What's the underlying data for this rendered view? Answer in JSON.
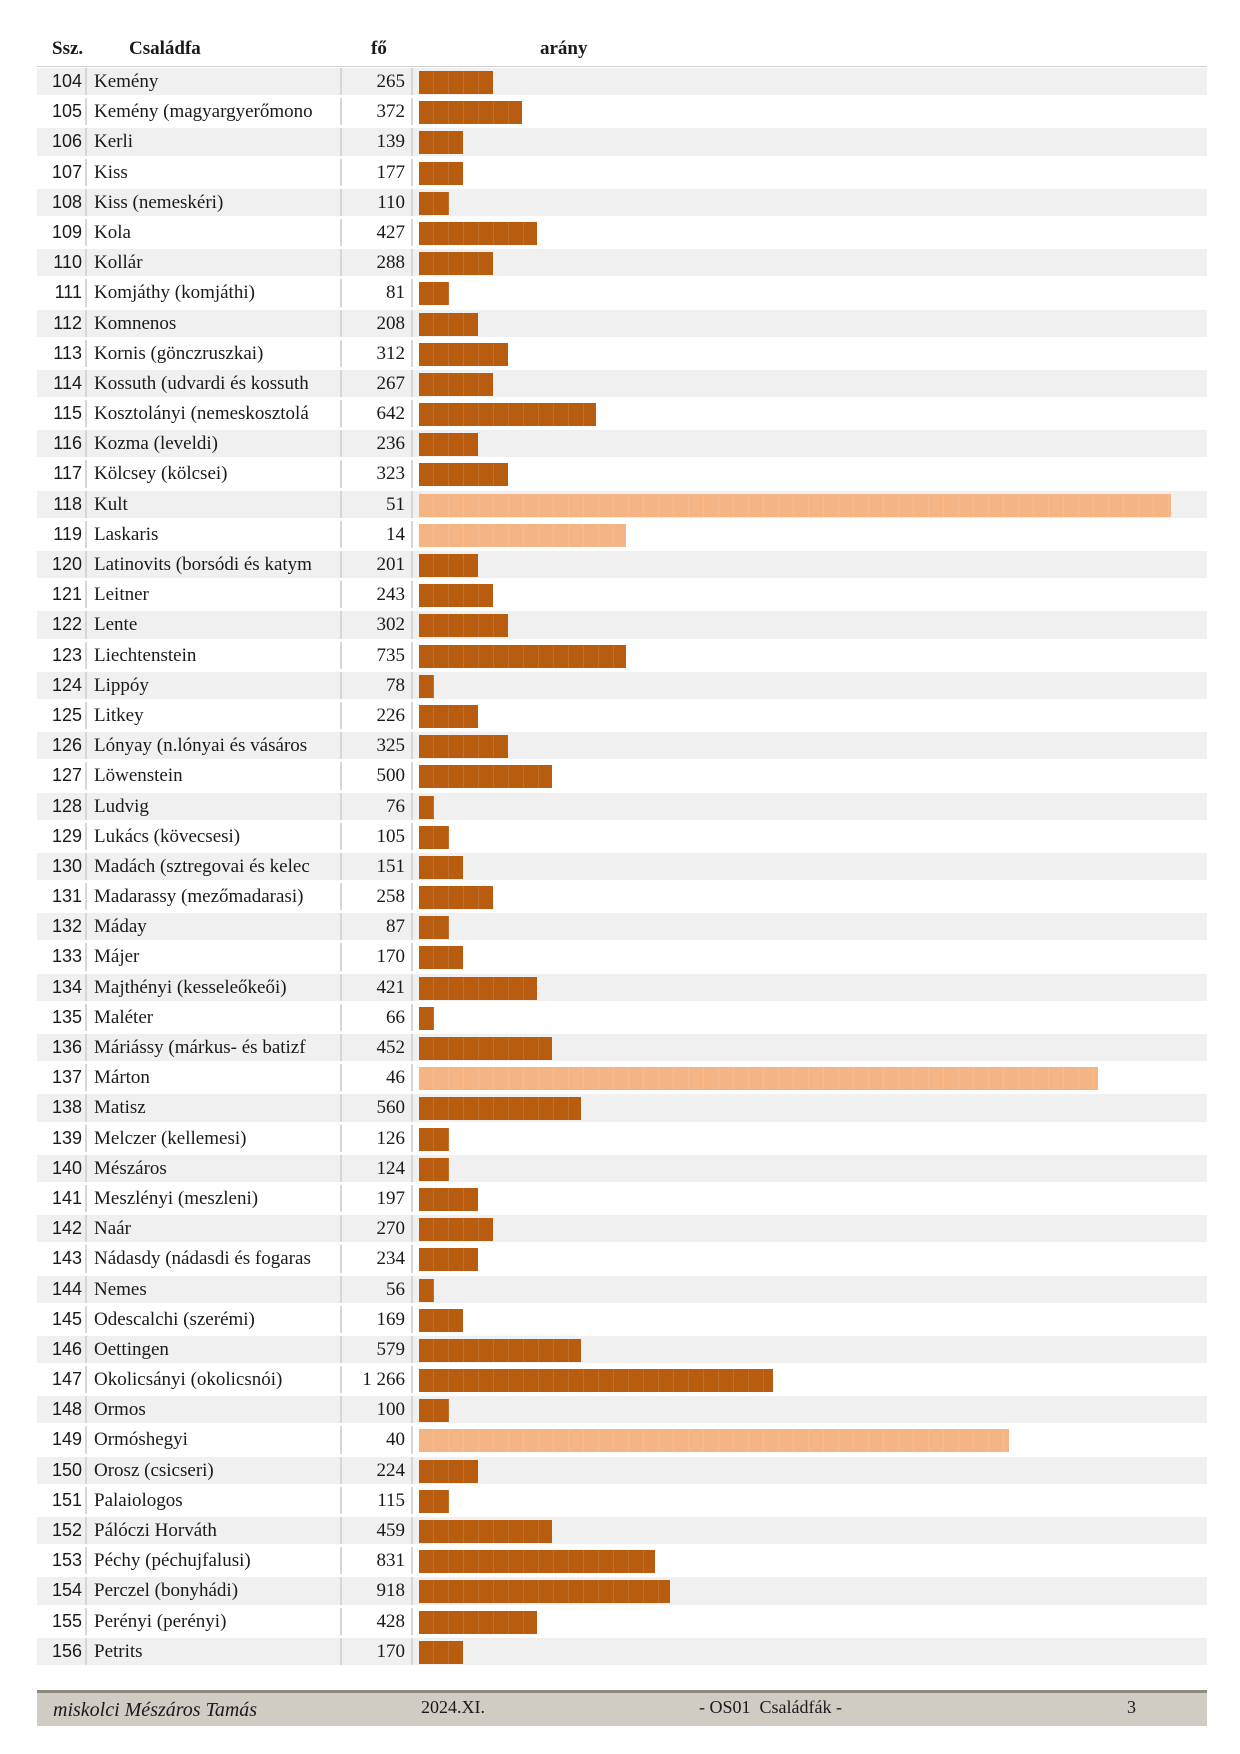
{
  "header": {
    "ssz": "Ssz.",
    "csaladfa": "Családfa",
    "fo": "fő",
    "arany": "arány"
  },
  "colors": {
    "bar_dark": "#b85c10",
    "bar_light": "#f5b483",
    "row_alt": "#f0f0f0"
  },
  "rows": [
    {
      "ssz": "104",
      "name": "Kemény",
      "fo": "265",
      "bar_units": 5,
      "light": false
    },
    {
      "ssz": "105",
      "name": "Kemény (magyargyerőmono",
      "fo": "372",
      "bar_units": 7,
      "light": false
    },
    {
      "ssz": "106",
      "name": "Kerli",
      "fo": "139",
      "bar_units": 3,
      "light": false
    },
    {
      "ssz": "107",
      "name": "Kiss",
      "fo": "177",
      "bar_units": 3,
      "light": false
    },
    {
      "ssz": "108",
      "name": "Kiss (nemeskéri)",
      "fo": "110",
      "bar_units": 2,
      "light": false
    },
    {
      "ssz": "109",
      "name": "Kola",
      "fo": "427",
      "bar_units": 8,
      "light": false
    },
    {
      "ssz": "110",
      "name": "Kollár",
      "fo": "288",
      "bar_units": 5,
      "light": false
    },
    {
      "ssz": "111",
      "name": "Komjáthy (komjáthi)",
      "fo": "81",
      "bar_units": 2,
      "light": false
    },
    {
      "ssz": "112",
      "name": "Komnenos",
      "fo": "208",
      "bar_units": 4,
      "light": false
    },
    {
      "ssz": "113",
      "name": "Kornis (gönczruszkai)",
      "fo": "312",
      "bar_units": 6,
      "light": false
    },
    {
      "ssz": "114",
      "name": "Kossuth (udvardi és kossuth",
      "fo": "267",
      "bar_units": 5,
      "light": false
    },
    {
      "ssz": "115",
      "name": "Kosztolányi (nemeskosztolá",
      "fo": "642",
      "bar_units": 12,
      "light": false
    },
    {
      "ssz": "116",
      "name": "Kozma (leveldi)",
      "fo": "236",
      "bar_units": 4,
      "light": false
    },
    {
      "ssz": "117",
      "name": "Kölcsey (kölcsei)",
      "fo": "323",
      "bar_units": 6,
      "light": false
    },
    {
      "ssz": "118",
      "name": "Kult",
      "fo": "51",
      "bar_units": 51,
      "light": true
    },
    {
      "ssz": "119",
      "name": "Laskaris",
      "fo": "14",
      "bar_units": 14,
      "light": true
    },
    {
      "ssz": "120",
      "name": "Latinovits (borsódi és katym",
      "fo": "201",
      "bar_units": 4,
      "light": false
    },
    {
      "ssz": "121",
      "name": "Leitner",
      "fo": "243",
      "bar_units": 5,
      "light": false
    },
    {
      "ssz": "122",
      "name": "Lente",
      "fo": "302",
      "bar_units": 6,
      "light": false
    },
    {
      "ssz": "123",
      "name": "Liechtenstein",
      "fo": "735",
      "bar_units": 14,
      "light": false
    },
    {
      "ssz": "124",
      "name": "Lippóy",
      "fo": "78",
      "bar_units": 1,
      "light": false
    },
    {
      "ssz": "125",
      "name": "Litkey",
      "fo": "226",
      "bar_units": 4,
      "light": false
    },
    {
      "ssz": "126",
      "name": "Lónyay (n.lónyai és vásáros",
      "fo": "325",
      "bar_units": 6,
      "light": false
    },
    {
      "ssz": "127",
      "name": "Löwenstein",
      "fo": "500",
      "bar_units": 9,
      "light": false
    },
    {
      "ssz": "128",
      "name": "Ludvig",
      "fo": "76",
      "bar_units": 1,
      "light": false
    },
    {
      "ssz": "129",
      "name": "Lukács (kövecsesi)",
      "fo": "105",
      "bar_units": 2,
      "light": false
    },
    {
      "ssz": "130",
      "name": "Madách (sztregovai és kelec",
      "fo": "151",
      "bar_units": 3,
      "light": false
    },
    {
      "ssz": "131",
      "name": "Madarassy (mezőmadarasi)",
      "fo": "258",
      "bar_units": 5,
      "light": false
    },
    {
      "ssz": "132",
      "name": "Máday",
      "fo": "87",
      "bar_units": 2,
      "light": false
    },
    {
      "ssz": "133",
      "name": "Májer",
      "fo": "170",
      "bar_units": 3,
      "light": false
    },
    {
      "ssz": "134",
      "name": "Majthényi (kesseleőkeői)",
      "fo": "421",
      "bar_units": 8,
      "light": false
    },
    {
      "ssz": "135",
      "name": "Maléter",
      "fo": "66",
      "bar_units": 1,
      "light": false
    },
    {
      "ssz": "136",
      "name": "Máriássy (márkus- és batizf",
      "fo": "452",
      "bar_units": 9,
      "light": false
    },
    {
      "ssz": "137",
      "name": "Márton",
      "fo": "46",
      "bar_units": 46,
      "light": true
    },
    {
      "ssz": "138",
      "name": "Matisz",
      "fo": "560",
      "bar_units": 11,
      "light": false
    },
    {
      "ssz": "139",
      "name": "Melczer (kellemesi)",
      "fo": "126",
      "bar_units": 2,
      "light": false
    },
    {
      "ssz": "140",
      "name": "Mészáros",
      "fo": "124",
      "bar_units": 2,
      "light": false
    },
    {
      "ssz": "141",
      "name": "Meszlényi (meszleni)",
      "fo": "197",
      "bar_units": 4,
      "light": false
    },
    {
      "ssz": "142",
      "name": "Naár",
      "fo": "270",
      "bar_units": 5,
      "light": false
    },
    {
      "ssz": "143",
      "name": "Nádasdy (nádasdi és fogaras",
      "fo": "234",
      "bar_units": 4,
      "light": false
    },
    {
      "ssz": "144",
      "name": "Nemes",
      "fo": "56",
      "bar_units": 1,
      "light": false
    },
    {
      "ssz": "145",
      "name": "Odescalchi (szerémi)",
      "fo": "169",
      "bar_units": 3,
      "light": false
    },
    {
      "ssz": "146",
      "name": "Oettingen",
      "fo": "579",
      "bar_units": 11,
      "light": false
    },
    {
      "ssz": "147",
      "name": "Okolicsányi (okolicsnói)",
      "fo": "1 266",
      "bar_units": 24,
      "light": false
    },
    {
      "ssz": "148",
      "name": "Ormos",
      "fo": "100",
      "bar_units": 2,
      "light": false
    },
    {
      "ssz": "149",
      "name": "Ormóshegyi",
      "fo": "40",
      "bar_units": 40,
      "light": true
    },
    {
      "ssz": "150",
      "name": "Orosz (csicseri)",
      "fo": "224",
      "bar_units": 4,
      "light": false
    },
    {
      "ssz": "151",
      "name": "Palaiologos",
      "fo": "115",
      "bar_units": 2,
      "light": false
    },
    {
      "ssz": "152",
      "name": "Pálóczi Horváth",
      "fo": "459",
      "bar_units": 9,
      "light": false
    },
    {
      "ssz": "153",
      "name": "Péchy (péchujfalusi)",
      "fo": "831",
      "bar_units": 16,
      "light": false
    },
    {
      "ssz": "154",
      "name": "Perczel (bonyhádi)",
      "fo": "918",
      "bar_units": 17,
      "light": false
    },
    {
      "ssz": "155",
      "name": "Perényi (perényi)",
      "fo": "428",
      "bar_units": 8,
      "light": false
    },
    {
      "ssz": "156",
      "name": "Petrits",
      "fo": "170",
      "bar_units": 3,
      "light": false
    }
  ],
  "footer": {
    "author": "miskolci Mészáros Tamás",
    "date": "2024.XI.",
    "title": "- OS01  Családfák -",
    "page": "3"
  }
}
